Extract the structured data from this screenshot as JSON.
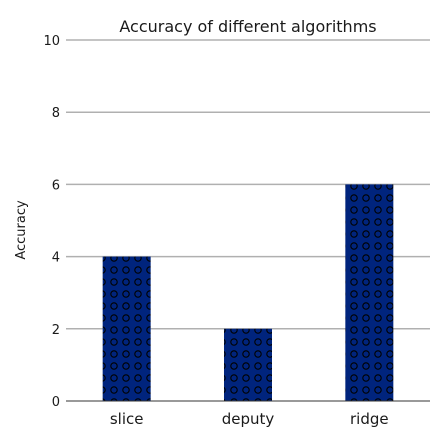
{
  "chart_data": {
    "type": "bar",
    "title": "Accuracy of different algorithms",
    "xlabel": "",
    "ylabel": "Accuracy",
    "categories": [
      "slice",
      "deputy",
      "ridge"
    ],
    "values": [
      4,
      2,
      6
    ],
    "ylim": [
      0,
      10
    ],
    "yticks": [
      "0",
      "2",
      "4",
      "6",
      "8",
      "10"
    ],
    "grid": "horizontal",
    "bar_color": "#00247d",
    "bar_pattern": "dotted circles"
  }
}
